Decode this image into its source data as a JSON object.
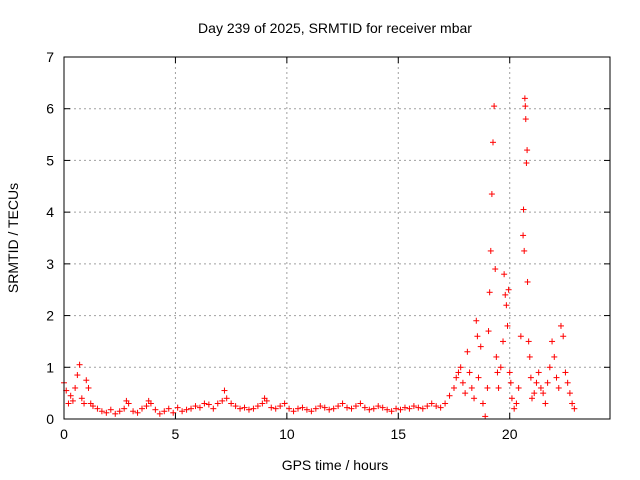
{
  "chart_data": {
    "type": "scatter",
    "title": "Day 239 of 2025, SRMTID for receiver mbar",
    "xlabel": "GPS time / hours",
    "ylabel": "SRMTID / TECUs",
    "xlim": [
      0,
      24.5
    ],
    "ylim": [
      0,
      7
    ],
    "xticks": [
      0,
      5,
      10,
      15,
      20
    ],
    "yticks": [
      0,
      1,
      2,
      3,
      4,
      5,
      6,
      7
    ],
    "grid": true,
    "marker": "plus",
    "color": "#ff0000",
    "series": [
      {
        "name": "SRMTID",
        "x": [
          0.0,
          0.1,
          0.2,
          0.3,
          0.4,
          0.5,
          0.6,
          0.7,
          0.8,
          0.9,
          1.0,
          1.1,
          1.2,
          1.3,
          1.5,
          1.7,
          1.9,
          2.1,
          2.3,
          2.5,
          2.7,
          2.8,
          2.9,
          3.1,
          3.3,
          3.5,
          3.7,
          3.8,
          3.9,
          4.1,
          4.3,
          4.5,
          4.7,
          4.9,
          5.1,
          5.3,
          5.5,
          5.7,
          5.9,
          6.1,
          6.3,
          6.5,
          6.7,
          6.9,
          7.1,
          7.2,
          7.3,
          7.5,
          7.7,
          7.9,
          8.1,
          8.3,
          8.5,
          8.7,
          8.9,
          9.0,
          9.1,
          9.3,
          9.5,
          9.7,
          9.9,
          10.1,
          10.3,
          10.5,
          10.7,
          10.9,
          11.1,
          11.3,
          11.5,
          11.7,
          11.9,
          12.1,
          12.3,
          12.5,
          12.7,
          12.9,
          13.1,
          13.3,
          13.5,
          13.7,
          13.9,
          14.1,
          14.3,
          14.5,
          14.7,
          14.9,
          15.1,
          15.3,
          15.5,
          15.7,
          15.9,
          16.1,
          16.3,
          16.5,
          16.7,
          16.9,
          17.1,
          17.3,
          17.5,
          17.6,
          17.7,
          17.8,
          17.9,
          18.0,
          18.1,
          18.2,
          18.3,
          18.4,
          18.5,
          18.55,
          18.6,
          18.7,
          18.8,
          18.9,
          19.0,
          19.05,
          19.1,
          19.15,
          19.2,
          19.25,
          19.3,
          19.35,
          19.4,
          19.45,
          19.5,
          19.6,
          19.7,
          19.75,
          19.8,
          19.85,
          19.9,
          19.95,
          20.0,
          20.05,
          20.1,
          20.2,
          20.3,
          20.4,
          20.5,
          20.6,
          20.62,
          20.65,
          20.68,
          20.7,
          20.72,
          20.75,
          20.78,
          20.8,
          20.85,
          20.9,
          20.95,
          21.0,
          21.1,
          21.2,
          21.3,
          21.4,
          21.5,
          21.6,
          21.7,
          21.8,
          21.9,
          22.0,
          22.1,
          22.2,
          22.3,
          22.4,
          22.5,
          22.6,
          22.7,
          22.8,
          22.9
        ],
        "values": [
          0.7,
          0.55,
          0.3,
          0.45,
          0.35,
          0.6,
          0.85,
          1.05,
          0.4,
          0.3,
          0.75,
          0.6,
          0.3,
          0.25,
          0.2,
          0.15,
          0.12,
          0.18,
          0.1,
          0.15,
          0.2,
          0.35,
          0.3,
          0.15,
          0.12,
          0.2,
          0.25,
          0.35,
          0.3,
          0.18,
          0.1,
          0.15,
          0.2,
          0.12,
          0.22,
          0.15,
          0.18,
          0.2,
          0.25,
          0.22,
          0.3,
          0.28,
          0.2,
          0.3,
          0.35,
          0.55,
          0.4,
          0.3,
          0.25,
          0.2,
          0.22,
          0.18,
          0.2,
          0.25,
          0.3,
          0.4,
          0.35,
          0.22,
          0.2,
          0.25,
          0.3,
          0.2,
          0.15,
          0.2,
          0.22,
          0.18,
          0.15,
          0.2,
          0.25,
          0.22,
          0.18,
          0.2,
          0.25,
          0.3,
          0.22,
          0.2,
          0.25,
          0.3,
          0.22,
          0.18,
          0.2,
          0.25,
          0.22,
          0.18,
          0.15,
          0.2,
          0.18,
          0.22,
          0.2,
          0.25,
          0.22,
          0.2,
          0.25,
          0.3,
          0.25,
          0.22,
          0.3,
          0.45,
          0.6,
          0.8,
          0.9,
          1.0,
          0.7,
          0.5,
          1.3,
          0.9,
          0.6,
          0.4,
          1.9,
          1.6,
          0.8,
          1.4,
          0.3,
          0.05,
          0.6,
          1.7,
          2.45,
          3.25,
          4.35,
          5.35,
          6.05,
          2.9,
          1.2,
          0.9,
          0.6,
          1.0,
          1.5,
          2.8,
          2.4,
          2.2,
          1.8,
          2.5,
          0.9,
          0.7,
          0.4,
          0.2,
          0.3,
          0.6,
          1.6,
          3.55,
          4.05,
          3.25,
          6.2,
          6.05,
          5.8,
          4.95,
          5.2,
          2.65,
          1.5,
          1.2,
          0.8,
          0.4,
          0.5,
          0.7,
          0.9,
          0.6,
          0.5,
          0.3,
          0.7,
          1.0,
          1.5,
          1.2,
          0.8,
          0.6,
          1.8,
          1.6,
          0.9,
          0.7,
          0.5,
          0.3,
          0.2
        ]
      }
    ]
  }
}
